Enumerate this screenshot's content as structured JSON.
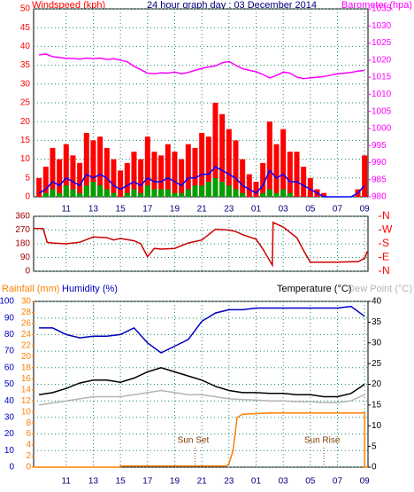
{
  "chart_data": [
    {
      "type": "line",
      "title": "24 hour graph day : 03 December 2014",
      "ylabel": "Windspeed (kph)",
      "y2label": "Barometer (hpa)",
      "xlim": [
        8.6,
        33.25
      ],
      "xticks": [
        11,
        13,
        15,
        17,
        19,
        21,
        23,
        {
          "value": 25,
          "label": "01"
        },
        {
          "value": 27,
          "label": "03"
        },
        {
          "value": 29,
          "label": "05"
        },
        {
          "value": 31,
          "label": "07"
        },
        {
          "value": 33,
          "label": "09"
        }
      ],
      "xtick_labels": true,
      "ylim": [
        0,
        50
      ],
      "yticks": [
        0,
        5,
        10,
        15,
        20,
        25,
        30,
        35,
        40,
        45,
        50
      ],
      "y2lim": [
        980,
        1035
      ],
      "y2ticks": [
        980,
        985,
        990,
        995,
        1000,
        1005,
        1010,
        1015,
        1020,
        1025,
        1030,
        1035
      ],
      "grid": true,
      "x": [
        9,
        9.5,
        10,
        10.5,
        11,
        11.5,
        12,
        12.5,
        13,
        13.5,
        14,
        14.5,
        15,
        15.5,
        16,
        16.5,
        17,
        17.5,
        18,
        18.5,
        19,
        19.5,
        20,
        20.5,
        21,
        21.5,
        22,
        22.5,
        23,
        23.5,
        24,
        24.5,
        25,
        25.5,
        26,
        26.5,
        27,
        27.5,
        28,
        28.5,
        29,
        29.5,
        30,
        30.5,
        31,
        31.5,
        32,
        32.5,
        33
      ],
      "series": [
        {
          "type": "bar",
          "color": "#ff0000",
          "values": [
            5,
            8,
            13,
            10,
            14,
            11,
            9,
            17,
            15,
            16,
            13,
            10,
            7,
            9,
            12,
            10,
            16,
            12,
            11,
            14,
            12,
            10,
            14,
            13,
            17,
            16,
            25,
            22,
            18,
            15,
            10,
            6,
            4,
            9,
            20,
            14,
            18,
            12,
            12,
            8,
            5,
            2,
            1,
            0,
            0,
            0,
            0,
            2,
            11
          ]
        },
        {
          "type": "bar",
          "color": "#00a000",
          "values": [
            0,
            1,
            2,
            1,
            3,
            2,
            1,
            3,
            4,
            3,
            2,
            1,
            0,
            1,
            2,
            1,
            3,
            2,
            2,
            2,
            1,
            1,
            2,
            3,
            3,
            4,
            5,
            4,
            3,
            2,
            1,
            0,
            0,
            1,
            2,
            1,
            2,
            1,
            0,
            0,
            0,
            0,
            0,
            0,
            0,
            0,
            0,
            0,
            0
          ]
        },
        {
          "type": "line",
          "color": "#0000ff",
          "values": [
            1,
            2,
            4,
            3,
            5,
            4,
            3,
            6,
            5,
            6,
            5,
            3,
            2,
            3,
            4,
            3,
            5,
            4,
            4,
            5,
            4,
            3,
            5,
            5,
            6,
            6,
            8,
            7,
            6,
            5,
            3,
            2,
            1,
            3,
            7,
            5,
            6,
            4,
            4,
            3,
            2,
            1,
            0,
            0,
            0,
            0,
            0,
            1,
            3
          ]
        },
        {
          "type": "line",
          "axis": "y2",
          "color": "#ff00ff",
          "values": [
            1021.5,
            1021.8,
            1021,
            1020.8,
            1020.5,
            1020.5,
            1020.3,
            1020.6,
            1020.4,
            1020.6,
            1020.2,
            1020.4,
            1020,
            1019.5,
            1018.2,
            1017.2,
            1016.2,
            1016,
            1016.3,
            1016.2,
            1016.5,
            1016,
            1016.4,
            1017,
            1017.6,
            1018,
            1018.3,
            1019.2,
            1019.6,
            1018.5,
            1017.5,
            1017,
            1016.6,
            1015.8,
            1014.8,
            1015.5,
            1016.5,
            1016.2,
            1015,
            1014.6,
            1014.8,
            1015,
            1015.2,
            1015.6,
            1016,
            1016.2,
            1016.4,
            1016.8,
            1017
          ]
        }
      ]
    },
    {
      "type": "line",
      "xlim": [
        8.6,
        33.25
      ],
      "xticks": [
        11,
        13,
        15,
        17,
        19,
        21,
        23,
        25,
        27,
        29,
        31,
        33
      ],
      "xtick_labels": false,
      "ylim": [
        0,
        360
      ],
      "yticks": [
        0,
        90,
        180,
        270,
        360
      ],
      "y2lim": [
        0,
        360
      ],
      "y2ticks": [
        {
          "value": 360,
          "label": "N"
        },
        {
          "value": 270,
          "label": "W"
        },
        {
          "value": 180,
          "label": "S"
        },
        {
          "value": 90,
          "label": "E"
        },
        {
          "value": 0,
          "label": "N"
        }
      ],
      "grid": true,
      "series": [
        {
          "type": "line",
          "color": "#cc0000",
          "x": [
            8.6,
            9.3,
            9.6,
            10,
            11,
            12,
            13,
            14,
            14.5,
            15,
            16,
            16.5,
            17,
            17.5,
            18,
            19,
            20,
            21,
            21.5,
            22,
            23,
            23.5,
            24,
            25,
            25.5,
            26,
            26.2,
            26.25,
            27,
            28,
            28.6,
            29,
            30,
            31,
            32,
            32.5,
            33,
            33.2
          ],
          "values": [
            280,
            280,
            190,
            185,
            180,
            190,
            225,
            220,
            205,
            215,
            200,
            180,
            95,
            150,
            145,
            150,
            185,
            205,
            240,
            275,
            270,
            260,
            240,
            210,
            145,
            70,
            40,
            320,
            290,
            220,
            120,
            60,
            60,
            60,
            62,
            62,
            85,
            130
          ]
        }
      ]
    },
    {
      "type": "line",
      "xlim": [
        8.6,
        33.25
      ],
      "xticks": [
        11,
        13,
        15,
        17,
        19,
        21,
        23,
        {
          "value": 25,
          "label": "01"
        },
        {
          "value": 27,
          "label": "03"
        },
        {
          "value": 29,
          "label": "05"
        },
        {
          "value": 31,
          "label": "07"
        },
        {
          "value": 33,
          "label": "09"
        }
      ],
      "xtick_labels": true,
      "ylim": [
        0,
        100
      ],
      "yticks": [
        0,
        10,
        20,
        30,
        40,
        50,
        60,
        70,
        80,
        90,
        100
      ],
      "y2lim": [
        0,
        40
      ],
      "y2ticks": [
        0,
        5,
        10,
        15,
        20,
        25,
        30,
        35,
        40
      ],
      "y3lim": [
        0,
        30
      ],
      "y3ticks": [
        0,
        2,
        4,
        6,
        8,
        10,
        12,
        14,
        16,
        18,
        20,
        22,
        24,
        26,
        28,
        30
      ],
      "grid": true,
      "annotations": [
        {
          "text": "Sun Set",
          "x": 20.5
        },
        {
          "text": "Sun Rise",
          "x": 30
        }
      ],
      "series": [
        {
          "name": "Rainfall (mm)",
          "type": "line",
          "axis": "y3",
          "color": "#ff8000",
          "x": [
            8.6,
            15,
            15,
            22.8,
            23,
            23.3,
            23.6,
            24,
            26,
            33,
            33,
            33.25
          ],
          "values": [
            0,
            0,
            0.2,
            0.2,
            0.6,
            3,
            9,
            9.6,
            9.8,
            9.8,
            0,
            0
          ]
        },
        {
          "name": "Humidity (%)",
          "type": "line",
          "color": "#0000c0",
          "x": [
            9,
            10,
            11,
            12,
            13,
            14,
            15,
            16,
            17,
            18,
            19,
            20,
            21,
            22,
            23,
            24,
            25,
            26,
            27,
            28,
            29,
            30,
            31,
            32,
            33
          ],
          "values": [
            84,
            84,
            80,
            78,
            79,
            79,
            80,
            84,
            75,
            69,
            73,
            77,
            88,
            93,
            95,
            95,
            96,
            96,
            96,
            96,
            96,
            96,
            96,
            97,
            91
          ]
        },
        {
          "name": "Temperature (°C)",
          "type": "line",
          "axis": "y2",
          "color": "#000000",
          "x": [
            9,
            10,
            11,
            12,
            13,
            14,
            15,
            16,
            17,
            18,
            19,
            20,
            21,
            22,
            23,
            24,
            25,
            26,
            27,
            28,
            29,
            30,
            31,
            32,
            33
          ],
          "values": [
            17.5,
            18,
            19,
            20.3,
            21,
            21,
            20.5,
            21.5,
            23,
            24,
            23,
            22,
            21,
            19.5,
            18.5,
            18,
            18,
            17.8,
            17.8,
            17.5,
            17.5,
            17,
            17,
            17.8,
            20
          ]
        },
        {
          "name": "Dew Point (°C)",
          "type": "line",
          "axis": "y2",
          "color": "#b4b4b4",
          "x": [
            9,
            10,
            11,
            12,
            13,
            14,
            15,
            16,
            17,
            18,
            19,
            20,
            21,
            22,
            23,
            24,
            25,
            26,
            27,
            28,
            29,
            30,
            31,
            32,
            33
          ],
          "values": [
            15,
            15.5,
            16,
            16.5,
            17,
            17,
            17,
            17.5,
            18,
            18.5,
            18,
            17.5,
            17.5,
            17,
            16.5,
            16.3,
            16.2,
            16,
            16,
            15.8,
            15.8,
            15.6,
            15.6,
            16,
            17.5
          ]
        }
      ]
    }
  ]
}
